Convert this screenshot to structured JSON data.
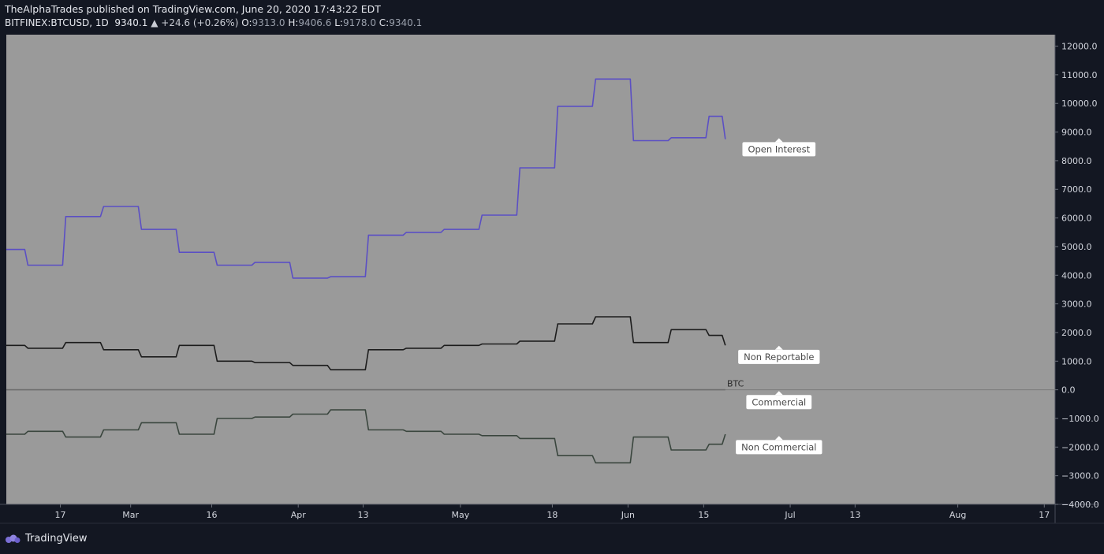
{
  "header": {
    "published": "TheAlphaTrades published on TradingView.com, June 20, 2020 17:43:22 EDT",
    "symbol": "BITFINEX:BTCUSD, 1D",
    "last": "9340.1",
    "change": "▲ +24.6 (+0.26%)",
    "open_label": "O:",
    "open": "9313.0",
    "high_label": "H:",
    "high": "9406.6",
    "low_label": "L:",
    "low": "9178.0",
    "close_label": "C:",
    "close": "9340.1"
  },
  "footer": {
    "brand": "TradingView",
    "logo_icon": "tradingview-logo-icon"
  },
  "colors": {
    "background": "#131722",
    "plot": "#9a9a9a",
    "open_interest": "#5b4fc4",
    "non_reportable": "#1c1c1c",
    "non_commercial": "#3a463e",
    "axis_text": "#d1d4dc"
  },
  "chart_data": {
    "type": "line",
    "step": true,
    "ylim": [
      -4000,
      12400
    ],
    "yticks": [
      12000,
      11000,
      10000,
      9000,
      8000,
      7000,
      6000,
      5000,
      4000,
      3000,
      2000,
      1000,
      0,
      -1000,
      -2000,
      -3000,
      -4000
    ],
    "ytick_labels": [
      "12000.0",
      "11000.0",
      "10000.0",
      "9000.0",
      "8000.0",
      "7000.0",
      "6000.0",
      "5000.0",
      "4000.0",
      "3000.0",
      "2000.0",
      "1000.0",
      "0.0",
      "−1000.0",
      "−2000.0",
      "−3000.0",
      "−4000.0"
    ],
    "x_start": "2020-02-07",
    "x_end": "2020-08-19",
    "xticks": [
      {
        "date": "2020-02-17",
        "label": "17"
      },
      {
        "date": "2020-03-01",
        "label": "Mar"
      },
      {
        "date": "2020-03-16",
        "label": "16"
      },
      {
        "date": "2020-04-01",
        "label": "Apr"
      },
      {
        "date": "2020-04-13",
        "label": "13"
      },
      {
        "date": "2020-05-01",
        "label": "May"
      },
      {
        "date": "2020-05-18",
        "label": "18"
      },
      {
        "date": "2020-06-01",
        "label": "Jun"
      },
      {
        "date": "2020-06-15",
        "label": "15"
      },
      {
        "date": "2020-07-01",
        "label": "Jul"
      },
      {
        "date": "2020-07-13",
        "label": "13"
      },
      {
        "date": "2020-08-01",
        "label": "Aug"
      },
      {
        "date": "2020-08-17",
        "label": "17"
      }
    ],
    "x": [
      "2020-02-07",
      "2020-02-11",
      "2020-02-18",
      "2020-02-25",
      "2020-03-03",
      "2020-03-10",
      "2020-03-17",
      "2020-03-24",
      "2020-03-31",
      "2020-04-07",
      "2020-04-14",
      "2020-04-21",
      "2020-04-28",
      "2020-05-05",
      "2020-05-12",
      "2020-05-19",
      "2020-05-26",
      "2020-06-02",
      "2020-06-09",
      "2020-06-16",
      "2020-06-19"
    ],
    "series": [
      {
        "name": "Open Interest",
        "color": "#5b4fc4",
        "values": [
          4900,
          4350,
          6050,
          6400,
          5600,
          4800,
          4350,
          4450,
          3900,
          3950,
          5400,
          5500,
          5600,
          6100,
          7750,
          9900,
          10850,
          8700,
          8800,
          9550,
          8750
        ]
      },
      {
        "name": "Non Reportable",
        "color": "#1c1c1c",
        "values": [
          1550,
          1450,
          1650,
          1400,
          1150,
          1550,
          1000,
          950,
          850,
          700,
          1400,
          1450,
          1550,
          1600,
          1700,
          2300,
          2550,
          1650,
          2100,
          1900,
          1550
        ]
      },
      {
        "name": "Commercial",
        "color": "#6e6e6e",
        "values": [
          0,
          0,
          0,
          0,
          0,
          0,
          0,
          0,
          0,
          0,
          0,
          0,
          0,
          0,
          0,
          0,
          0,
          0,
          0,
          0,
          0
        ]
      },
      {
        "name": "Non Commercial",
        "color": "#3a463e",
        "values": [
          -1550,
          -1450,
          -1650,
          -1400,
          -1150,
          -1550,
          -1000,
          -950,
          -850,
          -700,
          -1400,
          -1450,
          -1550,
          -1600,
          -1700,
          -2300,
          -2550,
          -1650,
          -2100,
          -1900,
          -1550
        ]
      }
    ],
    "labels": [
      {
        "text": "Open Interest",
        "value": 8400
      },
      {
        "text": "Non Reportable",
        "value": 1150
      },
      {
        "text": "Commercial",
        "value": -430
      },
      {
        "text": "Non Commercial",
        "value": -2000
      }
    ],
    "zero_label": "BTC"
  }
}
